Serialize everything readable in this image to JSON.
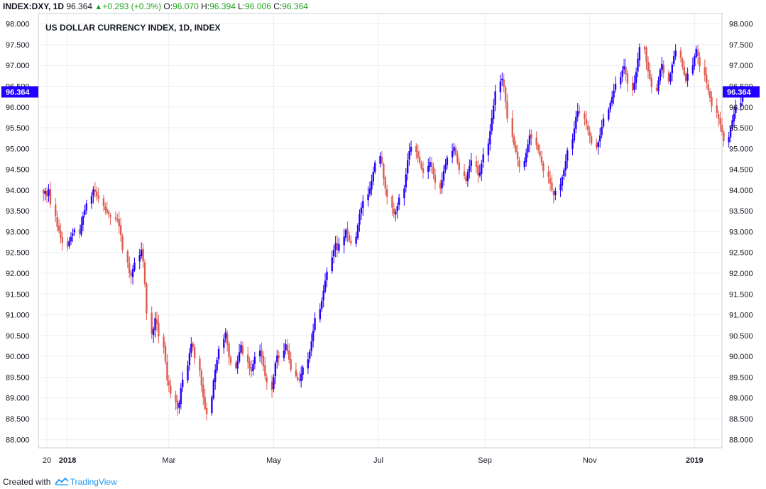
{
  "header": {
    "symbol": "INDEX:DXY, 1D",
    "price": "96.364",
    "change": "+0.293 (+0.3%)",
    "o_label": "O:",
    "o_value": "96.070",
    "h_label": "H:",
    "h_value": "96.394",
    "l_label": "L:",
    "l_value": "96.006",
    "c_label": "C:",
    "c_value": "96.364"
  },
  "footer": {
    "created_with": "Created with",
    "brand": "TradingView"
  },
  "colors": {
    "up": "#2200ff",
    "down": "#e05a4f",
    "grid": "#e9eff4",
    "axis_text": "#131722",
    "badge_bg": "#2200ff",
    "badge_text": "#ffffff"
  },
  "chart_data": {
    "type": "candlestick",
    "title": "US DOLLAR CURRENCY INDEX, 1D, INDEX",
    "xlabel": "",
    "ylabel": "",
    "ylim": [
      87.8,
      98.25
    ],
    "y_ticks": [
      88.0,
      88.5,
      89.0,
      89.5,
      90.0,
      90.5,
      91.0,
      91.5,
      92.0,
      92.5,
      93.0,
      93.5,
      94.0,
      94.5,
      95.0,
      95.5,
      96.0,
      96.5,
      97.0,
      97.5,
      98.0
    ],
    "y_tick_labels": [
      "88.000",
      "88.500",
      "89.000",
      "89.500",
      "90.000",
      "90.500",
      "91.000",
      "91.500",
      "92.000",
      "92.500",
      "93.000",
      "93.500",
      "94.000",
      "94.500",
      "95.000",
      "95.500",
      "96.000",
      "96.500",
      "97.000",
      "97.500",
      "98.000"
    ],
    "x_ticks": [
      {
        "label": "20",
        "date": "2017-12-20",
        "bold": false
      },
      {
        "label": "2018",
        "date": "2018-01-01",
        "bold": true
      },
      {
        "label": "Mar",
        "date": "2018-03-01",
        "bold": false
      },
      {
        "label": "May",
        "date": "2018-05-01",
        "bold": false
      },
      {
        "label": "Jul",
        "date": "2018-07-01",
        "bold": false
      },
      {
        "label": "Sep",
        "date": "2018-09-01",
        "bold": false
      },
      {
        "label": "Nov",
        "date": "2018-11-01",
        "bold": false
      },
      {
        "label": "2019",
        "date": "2019-01-01",
        "bold": true
      }
    ],
    "x_range": [
      "2017-12-15",
      "2019-01-17"
    ],
    "last_price": 96.364,
    "last_price_label": "96.364",
    "grid": true,
    "close_series": {
      "start": "2017-12-18",
      "frequency": "trading days",
      "values": [
        93.92,
        93.98,
        93.85,
        94.02,
        93.66,
        93.38,
        93.12,
        93.02,
        92.86,
        92.74,
        92.63,
        92.78,
        92.88,
        92.96,
        93.05,
        92.95,
        93.17,
        93.38,
        93.52,
        93.68,
        93.86,
        94.02,
        93.96,
        93.86,
        93.79,
        93.62,
        93.52,
        93.46,
        93.42,
        93.36,
        93.3,
        93.28,
        93.13,
        92.92,
        92.56,
        92.26,
        92.0,
        91.93,
        92.1,
        92.26,
        92.44,
        92.56,
        92.28,
        91.74,
        91.04,
        90.54,
        90.66,
        90.92,
        90.78,
        90.48,
        90.22,
        89.88,
        89.42,
        89.3,
        89.1,
        88.9,
        88.74,
        88.88,
        89.24,
        89.44,
        89.78,
        90.08,
        90.3,
        90.22,
        89.96,
        89.66,
        89.3,
        89.02,
        88.74,
        88.61,
        89.02,
        89.42,
        89.68,
        89.92,
        90.18,
        90.42,
        90.58,
        90.28,
        89.98,
        89.84,
        89.72,
        89.88,
        90.1,
        90.28,
        90.06,
        89.86,
        89.72,
        89.64,
        89.82,
        89.99,
        90.14,
        89.98,
        89.76,
        89.52,
        89.38,
        89.2,
        89.5,
        89.84,
        90.02,
        89.96,
        90.14,
        90.3,
        90.12,
        89.92,
        89.68,
        89.52,
        89.44,
        89.42,
        89.58,
        89.74,
        89.93,
        90.12,
        90.36,
        90.62,
        90.92,
        91.14,
        91.34,
        91.58,
        91.82,
        92.04,
        92.38,
        92.56,
        92.72,
        92.56,
        92.7,
        92.88,
        93.04,
        92.94,
        92.78,
        92.72,
        92.88,
        93.16,
        93.42,
        93.58,
        93.74,
        93.9,
        94.04,
        94.22,
        94.44,
        94.66,
        94.82,
        94.66,
        94.28,
        94.04,
        93.84,
        93.58,
        93.44,
        93.48,
        93.62,
        93.82,
        94.04,
        94.38,
        94.72,
        94.94,
        95.04,
        94.92,
        94.78,
        94.66,
        94.52,
        94.42,
        94.58,
        94.68,
        94.56,
        94.38,
        94.18,
        94.04,
        94.24,
        94.46,
        94.62,
        94.78,
        94.94,
        95.04,
        94.86,
        94.66,
        94.48,
        94.34,
        94.22,
        94.44,
        94.58,
        94.72,
        94.56,
        94.36,
        94.42,
        94.64,
        94.86,
        95.12,
        95.42,
        95.74,
        96.04,
        96.38,
        96.62,
        96.68,
        96.48,
        96.12,
        95.72,
        95.28,
        95.08,
        94.92,
        94.74,
        94.56,
        94.7,
        94.9,
        95.1,
        95.32,
        95.24,
        95.08,
        94.96,
        94.82,
        94.66,
        94.46,
        94.32,
        94.16,
        94.0,
        93.88,
        93.98,
        94.14,
        94.32,
        94.48,
        94.7,
        94.96,
        95.22,
        95.48,
        95.76,
        95.9,
        95.86,
        95.72,
        95.58,
        95.44,
        95.3,
        95.12,
        95.02,
        95.16,
        95.32,
        95.52,
        95.72,
        95.94,
        96.1,
        96.24,
        96.4,
        96.56,
        96.72,
        96.88,
        96.98,
        96.78,
        96.56,
        96.4,
        96.58,
        96.84,
        97.16,
        97.44,
        97.4,
        97.08,
        96.86,
        96.68,
        96.48,
        96.4,
        96.64,
        96.9,
        97.04,
        96.82,
        96.62,
        96.8,
        97.02,
        97.22,
        97.36,
        97.18,
        96.96,
        96.78,
        96.62,
        96.8,
        97.0,
        97.22,
        97.4,
        97.22,
        96.98,
        96.76,
        96.58,
        96.4,
        96.22,
        96.02,
        95.86,
        95.72,
        95.58,
        95.4,
        95.18,
        95.28,
        95.5,
        95.68,
        95.84,
        96.0,
        96.1,
        96.364
      ]
    }
  }
}
